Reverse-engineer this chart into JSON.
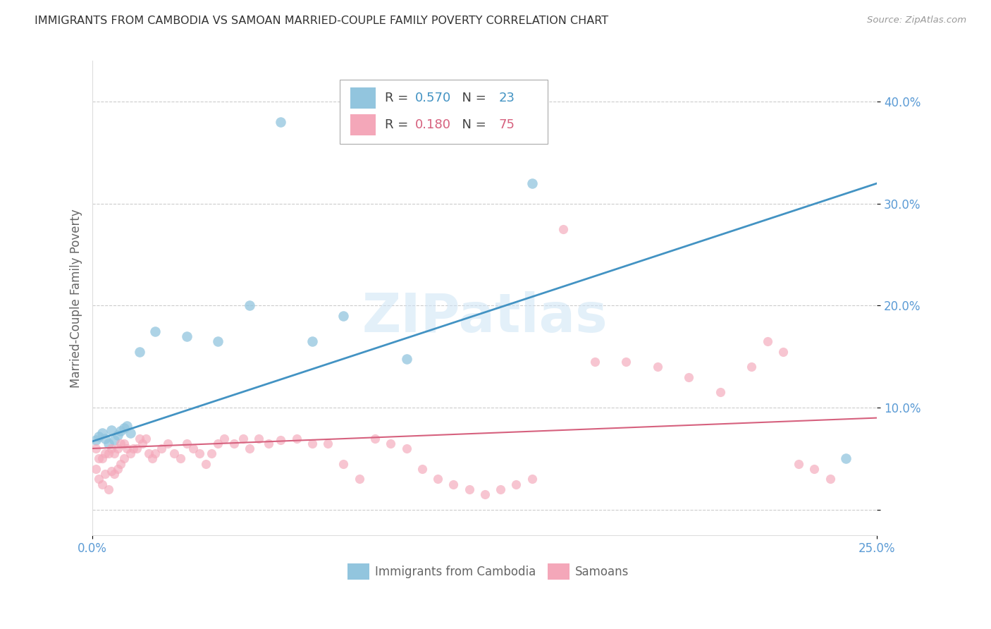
{
  "title": "IMMIGRANTS FROM CAMBODIA VS SAMOAN MARRIED-COUPLE FAMILY POVERTY CORRELATION CHART",
  "source": "Source: ZipAtlas.com",
  "ylabel": "Married-Couple Family Poverty",
  "watermark": "ZIPatlas",
  "cambodia_color": "#92c5de",
  "samoan_color": "#f4a7b9",
  "cambodia_line_color": "#4393c3",
  "samoan_line_color": "#d6617e",
  "background_color": "#ffffff",
  "grid_color": "#cccccc",
  "title_color": "#333333",
  "axis_label_color": "#666666",
  "tick_color": "#5b9bd5",
  "xlim": [
    0.0,
    0.25
  ],
  "ylim": [
    -0.025,
    0.44
  ],
  "R_cambodia": "0.570",
  "N_cambodia": "23",
  "R_samoan": "0.180",
  "N_samoan": "75",
  "cambodia_x": [
    0.001,
    0.002,
    0.003,
    0.004,
    0.005,
    0.006,
    0.007,
    0.008,
    0.009,
    0.01,
    0.011,
    0.012,
    0.015,
    0.02,
    0.03,
    0.04,
    0.05,
    0.06,
    0.07,
    0.08,
    0.1,
    0.14,
    0.24
  ],
  "cambodia_y": [
    0.068,
    0.072,
    0.075,
    0.07,
    0.065,
    0.078,
    0.068,
    0.073,
    0.077,
    0.08,
    0.082,
    0.075,
    0.155,
    0.175,
    0.17,
    0.165,
    0.2,
    0.38,
    0.165,
    0.19,
    0.148,
    0.32,
    0.05
  ],
  "samoan_x": [
    0.001,
    0.001,
    0.002,
    0.002,
    0.003,
    0.003,
    0.004,
    0.004,
    0.005,
    0.005,
    0.006,
    0.006,
    0.007,
    0.007,
    0.008,
    0.008,
    0.009,
    0.009,
    0.01,
    0.01,
    0.011,
    0.012,
    0.013,
    0.014,
    0.015,
    0.016,
    0.017,
    0.018,
    0.019,
    0.02,
    0.022,
    0.024,
    0.026,
    0.028,
    0.03,
    0.032,
    0.034,
    0.036,
    0.038,
    0.04,
    0.042,
    0.045,
    0.048,
    0.05,
    0.053,
    0.056,
    0.06,
    0.065,
    0.07,
    0.075,
    0.08,
    0.085,
    0.09,
    0.095,
    0.1,
    0.105,
    0.11,
    0.115,
    0.12,
    0.125,
    0.13,
    0.135,
    0.14,
    0.15,
    0.16,
    0.17,
    0.18,
    0.19,
    0.2,
    0.21,
    0.215,
    0.22,
    0.225,
    0.23,
    0.235
  ],
  "samoan_y": [
    0.06,
    0.04,
    0.05,
    0.03,
    0.05,
    0.025,
    0.055,
    0.035,
    0.055,
    0.02,
    0.06,
    0.038,
    0.055,
    0.035,
    0.06,
    0.04,
    0.065,
    0.045,
    0.065,
    0.05,
    0.06,
    0.055,
    0.06,
    0.06,
    0.07,
    0.065,
    0.07,
    0.055,
    0.05,
    0.055,
    0.06,
    0.065,
    0.055,
    0.05,
    0.065,
    0.06,
    0.055,
    0.045,
    0.055,
    0.065,
    0.07,
    0.065,
    0.07,
    0.06,
    0.07,
    0.065,
    0.068,
    0.07,
    0.065,
    0.065,
    0.045,
    0.03,
    0.07,
    0.065,
    0.06,
    0.04,
    0.03,
    0.025,
    0.02,
    0.015,
    0.02,
    0.025,
    0.03,
    0.275,
    0.145,
    0.145,
    0.14,
    0.13,
    0.115,
    0.14,
    0.165,
    0.155,
    0.045,
    0.04,
    0.03
  ]
}
